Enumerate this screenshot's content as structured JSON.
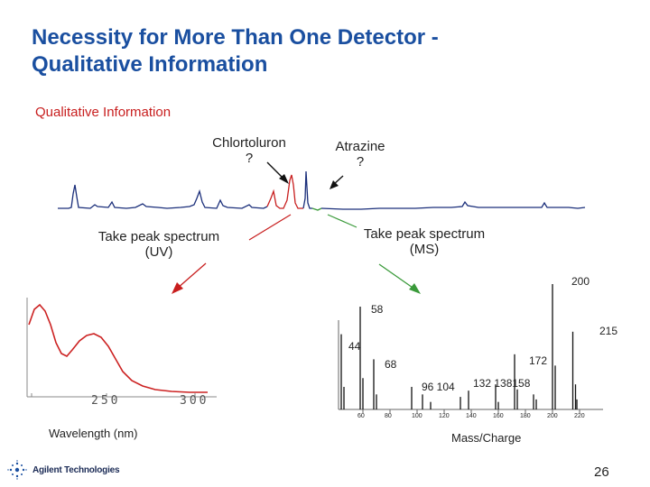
{
  "slide": {
    "title_line1": "Necessity for More Than One Detector -",
    "title_line2": "Qualitative Information",
    "subtitle": "Qualitative Information",
    "page_number": "26"
  },
  "chromatogram": {
    "peak1_name": "Chlortoluron",
    "peak1_q": "?",
    "peak2_name": "Atrazine",
    "peak2_q": "?",
    "uv_action_l1": "Take peak spectrum",
    "uv_action_l2": "(UV)",
    "ms_action_l1": "Take peak spectrum",
    "ms_action_l2": "(MS)"
  },
  "uv_spectrum": {
    "x_ticks": [
      "250",
      "300"
    ],
    "xlabel": "Wavelength (nm)"
  },
  "ms_spectrum": {
    "xlabel": "Mass/Charge",
    "x_ticks": [
      "60",
      "80",
      "100",
      "120",
      "140",
      "160",
      "180",
      "200",
      "220"
    ],
    "peak_labels": {
      "p200": "200",
      "p58": "58",
      "p215": "215",
      "p44": "44",
      "p172": "172",
      "p68": "68",
      "p96_104": "96 104",
      "p132_138_158": "132 138158"
    },
    "colors": {
      "uv_trace": "#cc2222",
      "arrow_uv": "#cc2222",
      "arrow_ms": "#3a9a3a",
      "chromatogram": "#1a2e7a"
    }
  },
  "footer": {
    "logo_text": "Agilent Technologies",
    "logo_icon": "agilent-spark-icon"
  }
}
